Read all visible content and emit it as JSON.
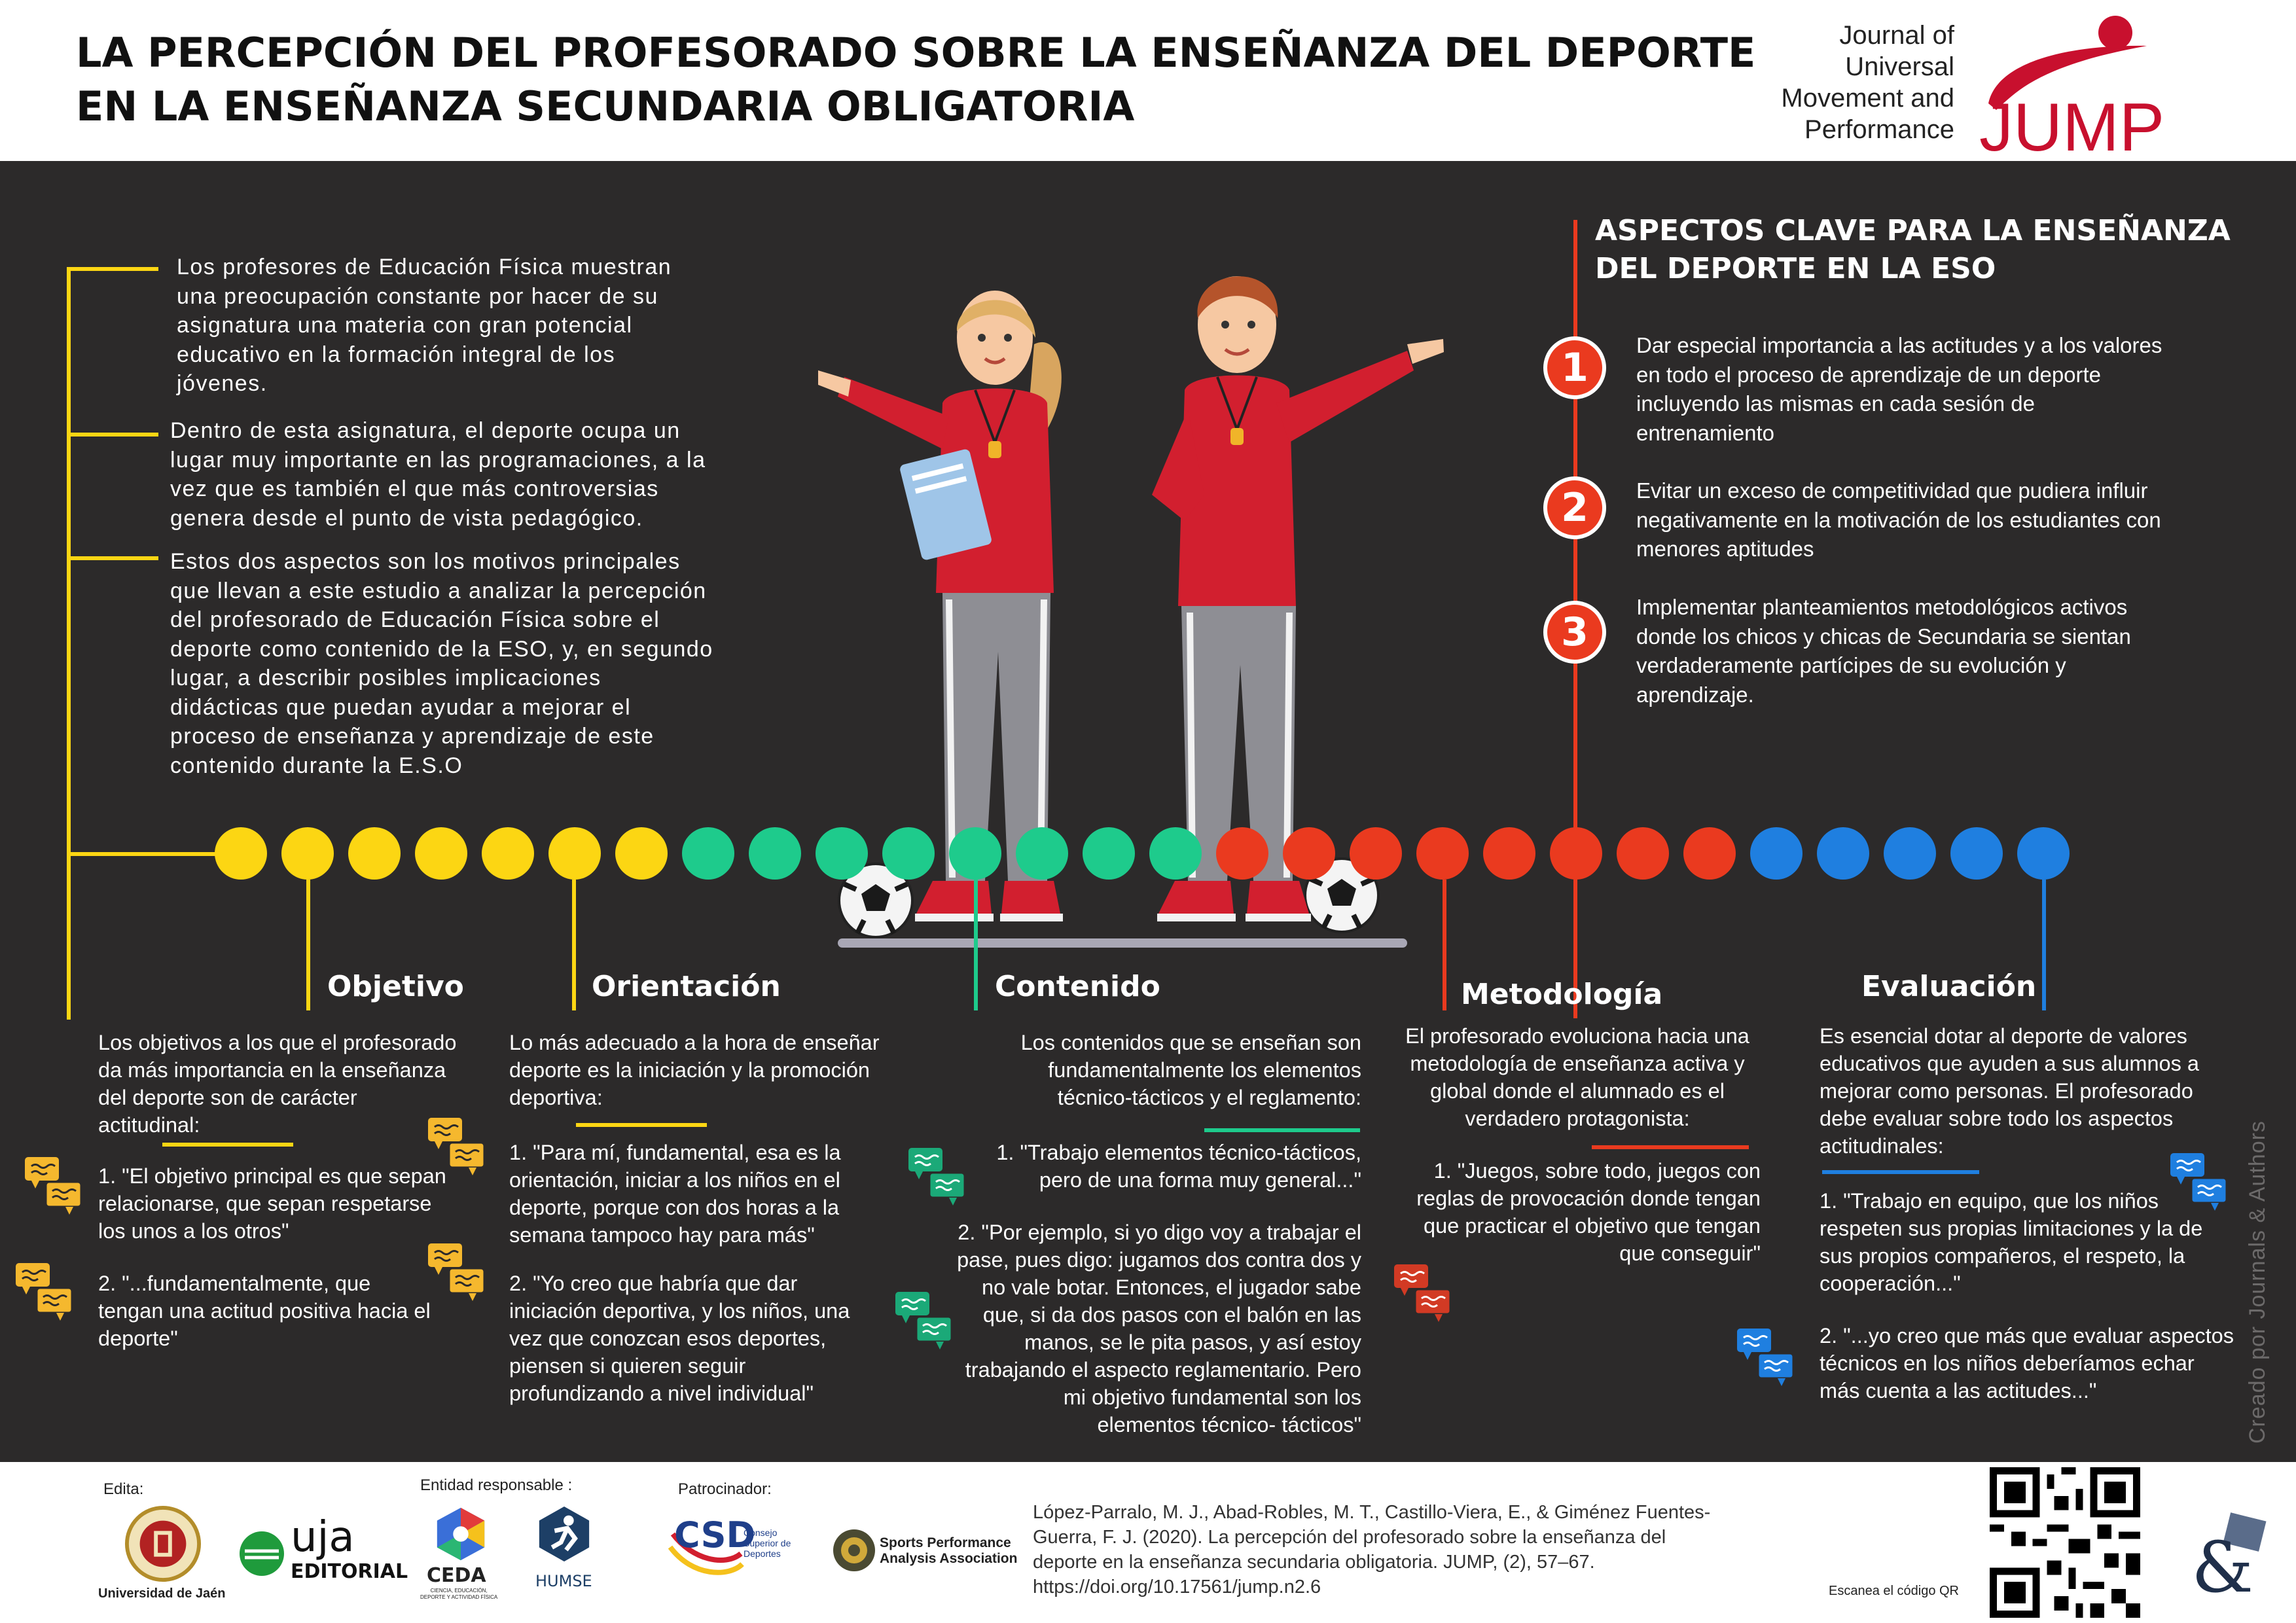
{
  "header": {
    "title_lines": [
      "LA PERCEPCIÓN DEL PROFESORADO SOBRE LA ENSEÑANZA DEL DEPORTE",
      "EN LA ENSEÑANZA SECUNDARIA OBLIGATORIA"
    ],
    "journal_lines": [
      "Journal of",
      "Universal",
      "Movement and",
      "Performance"
    ],
    "logo_text": "JUMP"
  },
  "intro": {
    "paragraphs": [
      [
        "Los profesores de Educación Física muestran",
        "una preocupación constante por hacer de su",
        "asignatura una materia con gran potencial",
        "educativo en la formación integral de los",
        "jóvenes."
      ],
      [
        "Dentro de esta asignatura, el deporte ocupa un",
        "lugar muy importante en las programaciones, a la",
        "vez que es también el que más controversias",
        "genera desde el punto de vista pedagógico."
      ],
      [
        "Estos dos aspectos son los motivos principales",
        "que llevan a este estudio a analizar la percepción",
        "del profesorado de Educación Física sobre el",
        "deporte como contenido de la ESO, y, en segundo",
        "lugar, a describir posibles implicaciones",
        "didácticas que puedan ayudar a mejorar el",
        "proceso de enseñanza y aprendizaje de este",
        "contenido durante la E.S.O"
      ]
    ]
  },
  "aspects": {
    "title_lines": [
      "ASPECTOS CLAVE PARA LA ENSEÑANZA",
      "DEL DEPORTE EN LA ESO"
    ],
    "items": [
      {
        "number": "1",
        "lines": [
          "Dar especial importancia a las actitudes y a los valores",
          "en todo el proceso de aprendizaje de un deporte",
          "incluyendo las mismas en cada sesión de",
          "entrenamiento"
        ]
      },
      {
        "number": "2",
        "lines": [
          "Evitar un exceso de competitividad que pudiera influir",
          "negativamente en la motivación de los estudiantes con",
          "menores aptitudes"
        ]
      },
      {
        "number": "3",
        "lines": [
          "Implementar planteamientos metodológicos activos",
          "donde los chicos y chicas de Secundaria se sientan",
          "verdaderamente partícipes de su evolución y",
          "aprendizaje."
        ]
      }
    ]
  },
  "colors": {
    "yellow": "#fcd613",
    "green": "#1ecb8c",
    "red": "#ea3a1f",
    "blue": "#1f7fe0",
    "background": "#2c2a2a",
    "jump_red": "#c8102e"
  },
  "sections": {
    "objetivo": {
      "title": "Objetivo",
      "intro": [
        "Los objetivos a los que el profesorado",
        "da más importancia en la enseñanza",
        "del deporte son de carácter",
        "actitudinal:"
      ],
      "quote1": [
        "1. \"El objetivo principal es que sepan",
        "relacionarse, que sepan respetarse",
        "los unos a los otros\""
      ],
      "quote2": [
        "2. \"...fundamentalmente, que",
        "tengan una actitud positiva hacia el",
        "deporte\""
      ]
    },
    "orientacion": {
      "title": "Orientación",
      "intro": [
        "Lo más adecuado a la hora de enseñar",
        "deporte es la iniciación y la promoción",
        "deportiva:"
      ],
      "quote1": [
        "1. \"Para mí, fundamental, esa es la",
        "orientación, iniciar a los niños en el",
        "deporte, porque con dos horas a la",
        "semana tampoco hay para más\""
      ],
      "quote2": [
        "2. \"Yo creo que habría que dar",
        "iniciación deportiva, y los niños, una",
        "vez que conozcan esos deportes,",
        "piensen si quieren seguir",
        "profundizando a nivel individual\""
      ]
    },
    "contenido": {
      "title": "Contenido",
      "intro": [
        "Los contenidos que se enseñan son",
        "fundamentalmente los elementos",
        "técnico-tácticos y el reglamento:"
      ],
      "quote1": [
        "1. \"Trabajo elementos técnico-tácticos,",
        "pero de una forma muy general...\""
      ],
      "quote2": [
        "2. \"Por ejemplo, si yo digo voy a trabajar el",
        "pase, pues digo: jugamos dos contra dos y",
        "no vale botar. Entonces, el jugador sabe",
        "que, si da dos pasos con el balón en las",
        "manos, se le pita pasos, y así estoy",
        "trabajando el aspecto reglamentario. Pero",
        "mi objetivo fundamental son los",
        "elementos técnico- tácticos\""
      ]
    },
    "metodologia": {
      "title": "Metodología",
      "intro": [
        "El profesorado evoluciona hacia una",
        "metodología de enseñanza activa y",
        "global donde el alumnado es el",
        "verdadero  protagonista:"
      ],
      "quote1": [
        "1. \"Juegos, sobre todo, juegos con",
        "reglas de provocación donde tengan",
        "que practicar el objetivo que tengan",
        "que conseguir\""
      ]
    },
    "evaluacion": {
      "title": "Evaluación",
      "intro": [
        "Es esencial dotar al deporte de valores",
        "educativos que ayuden a sus alumnos a",
        "mejorar como personas.  El profesorado",
        "debe evaluar sobre todo los aspectos",
        "actitudinales:"
      ],
      "quote1": [
        "1.  \"Trabajo en equipo, que los niños",
        "respeten sus propias limitaciones y la de",
        "sus propios compañeros, el respeto, la",
        "cooperación...\""
      ],
      "quote2": [
        "2. \"...yo creo que más que evaluar aspectos",
        "técnicos en los niños deberíamos echar",
        "más cuenta a las actitudes...\""
      ]
    }
  },
  "credit": "Creado por Journals & Authors",
  "footer": {
    "edita_label": "Edita:",
    "university": "Universidad de Jaén",
    "uja_logo": "uja",
    "uja_editorial": "EDITORIAL",
    "entidad_label": "Entidad responsable :",
    "ceda": "CEDA",
    "ceda_sub": [
      "CIENCIA, EDUCACIÓN,",
      "DEPORTE Y ACTIVIDAD FÍSICA"
    ],
    "humse": "HUMSE",
    "patrocinador_label": "Patrocinador:",
    "csd": "CSD",
    "csd_sub": [
      "Consejo",
      "Superior de",
      "Deportes"
    ],
    "spaa": [
      "Sports Performance",
      "Analysis Association"
    ],
    "citation_lines": [
      "López-Parralo, M. J., Abad-Robles, M. T., Castillo-Viera, E., & Giménez Fuentes-",
      "Guerra, F. J. (2020). La percepción del profesorado sobre la enseñanza del",
      "deporte en la enseñanza secundaria obligatoria. JUMP, (2), 57–67.",
      "https://doi.org/10.17561/jump.n2.6"
    ],
    "qr_label": "Escanea el código QR"
  }
}
